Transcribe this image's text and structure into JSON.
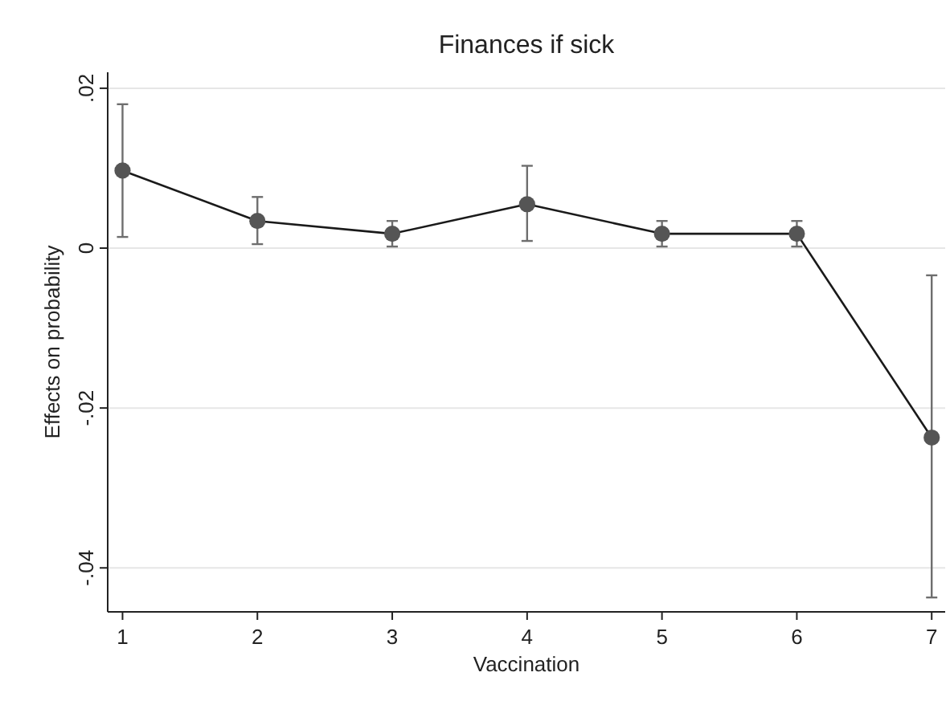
{
  "chart_data": {
    "type": "line",
    "title": "Finances if sick",
    "xlabel": "Vaccination",
    "ylabel": "Effects on probability",
    "x": [
      1,
      2,
      3,
      4,
      5,
      6,
      7
    ],
    "series": [
      {
        "color": "#555555",
        "values": [
          0.0097,
          0.0034,
          0.0018,
          0.0055,
          0.0018,
          0.0018,
          -0.0237
        ],
        "errors": [
          [
            0.0014,
            0.018
          ],
          [
            0.0005,
            0.0064
          ],
          [
            0.0002,
            0.0034
          ],
          [
            0.0009,
            0.0103
          ],
          [
            0.0002,
            0.0034
          ],
          [
            0.0002,
            0.0034
          ],
          [
            -0.0437,
            -0.0034
          ]
        ]
      }
    ],
    "xlim": [
      0.89,
      7.1
    ],
    "xticks": [
      1,
      2,
      3,
      4,
      5,
      6,
      7
    ],
    "ylim": [
      -0.0455,
      0.022
    ],
    "yticks": [
      {
        "value": -0.04,
        "label": "-.04"
      },
      {
        "value": -0.02,
        "label": "-.02"
      },
      {
        "value": 0,
        "label": "0"
      },
      {
        "value": 0.02,
        "label": ".02"
      }
    ],
    "grid": "y",
    "marker": "circle",
    "line_style": "solid"
  }
}
